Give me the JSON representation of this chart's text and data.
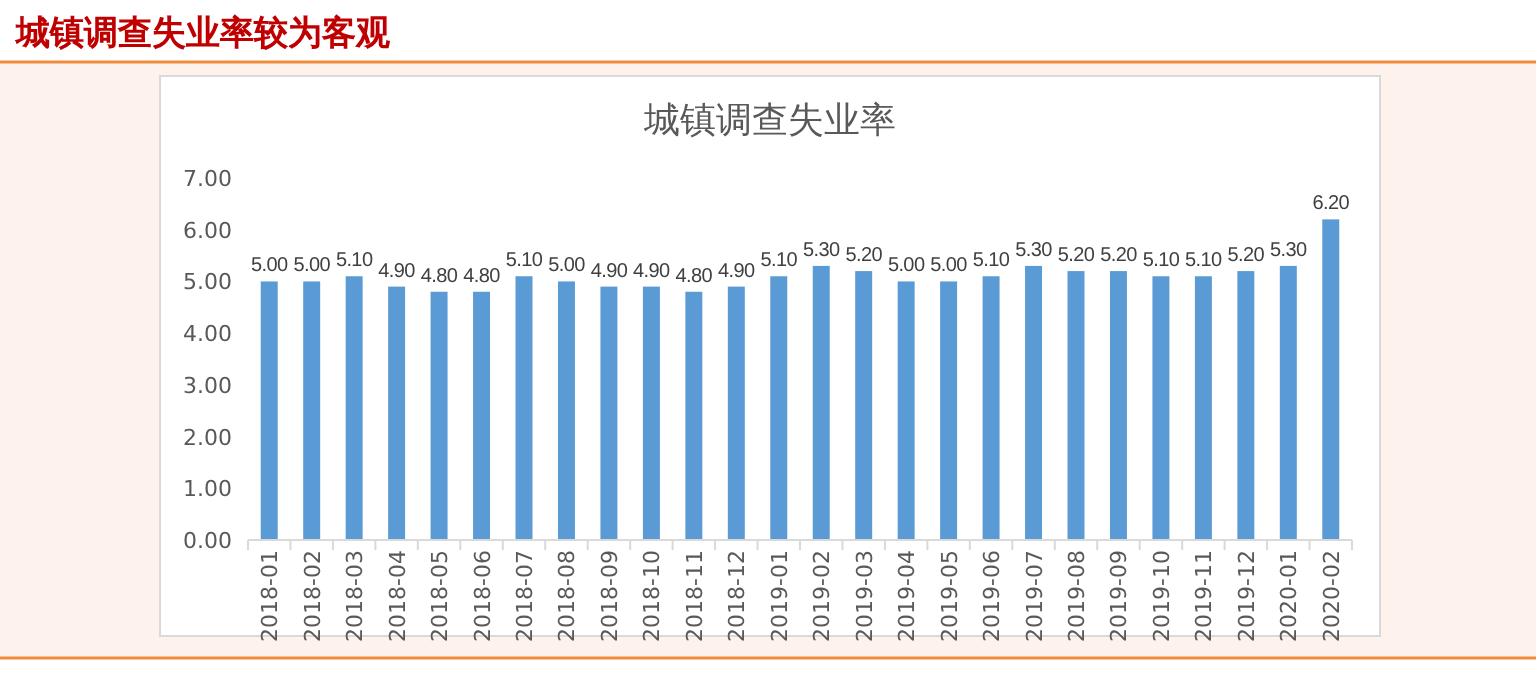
{
  "chart_data": {
    "type": "bar",
    "title": "城镇调查失业率较为客观",
    "subtitle": "城镇调查失业率",
    "categories": [
      "2018-01",
      "2018-02",
      "2018-03",
      "2018-04",
      "2018-05",
      "2018-06",
      "2018-07",
      "2018-08",
      "2018-09",
      "2018-10",
      "2018-11",
      "2018-12",
      "2019-01",
      "2019-02",
      "2019-03",
      "2019-04",
      "2019-05",
      "2019-06",
      "2019-07",
      "2019-08",
      "2019-09",
      "2019-10",
      "2019-11",
      "2019-12",
      "2020-01",
      "2020-02"
    ],
    "values": [
      5.0,
      5.0,
      5.1,
      4.9,
      4.8,
      4.8,
      5.1,
      5.0,
      4.9,
      4.9,
      4.8,
      4.9,
      5.1,
      5.3,
      5.2,
      5.0,
      5.0,
      5.1,
      5.3,
      5.2,
      5.2,
      5.1,
      5.1,
      5.2,
      5.3,
      6.2
    ],
    "value_labels": [
      "5.00",
      "5.00",
      "5.10",
      "4.90",
      "4.80",
      "4.80",
      "5.10",
      "5.00",
      "4.90",
      "4.90",
      "4.80",
      "4.90",
      "5.10",
      "5.30",
      "5.20",
      "5.00",
      "5.00",
      "5.10",
      "5.30",
      "5.20",
      "5.20",
      "5.10",
      "5.10",
      "5.20",
      "5.30",
      "6.20"
    ],
    "color": "#5b9bd5",
    "ylim": [
      0,
      7
    ],
    "yticks": [
      {
        "value": 0,
        "label": "0.00"
      },
      {
        "value": 1,
        "label": "1.00"
      },
      {
        "value": 2,
        "label": "2.00"
      },
      {
        "value": 3,
        "label": "3.00"
      },
      {
        "value": 4,
        "label": "4.00"
      },
      {
        "value": 5,
        "label": "5.00"
      },
      {
        "value": 6,
        "label": "6.00"
      },
      {
        "value": 7,
        "label": "7.00"
      }
    ]
  }
}
